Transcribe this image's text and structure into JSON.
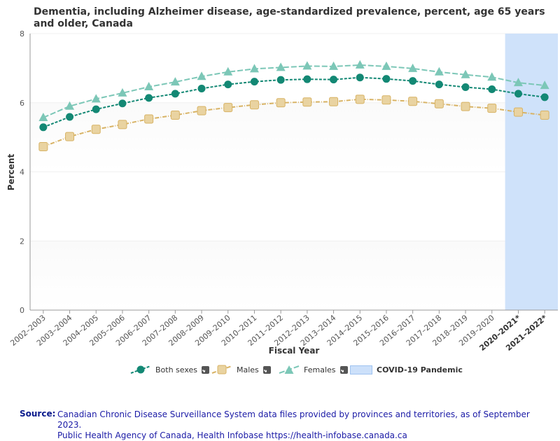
{
  "title": "Dementia, including Alzheimer disease, age-standardized prevalence, percent, age 65 years and older, Canada",
  "colors": {
    "both": "#138874",
    "males": "#d8b365",
    "females": "#7cc7b7",
    "covid": "#cce0fa"
  },
  "chart_data": {
    "type": "line",
    "title": "Dementia, including Alzheimer disease, age-standardized prevalence, percent, age 65 years and older, Canada",
    "xlabel": "Fiscal Year",
    "ylabel": "Percent",
    "ylim": [
      0,
      8
    ],
    "yticks": [
      0,
      2,
      4,
      6,
      8
    ],
    "categories": [
      "2002–2003",
      "2003–2004",
      "2004–2005",
      "2005–2006",
      "2006–2007",
      "2007–2008",
      "2008–2009",
      "2009–2010",
      "2010–2011",
      "2011–2012",
      "2012–2013",
      "2013–2014",
      "2014–2015",
      "2015–2016",
      "2016–2017",
      "2017–2018",
      "2018–2019",
      "2019–2020",
      "2020–2021*",
      "2021–2022*"
    ],
    "bold_categories": [
      "2020–2021*",
      "2021–2022*"
    ],
    "series": [
      {
        "name": "Both sexes",
        "values": [
          5.29,
          5.59,
          5.81,
          5.98,
          6.14,
          6.26,
          6.41,
          6.53,
          6.61,
          6.66,
          6.68,
          6.67,
          6.73,
          6.69,
          6.63,
          6.53,
          6.45,
          6.39,
          6.26,
          6.16
        ]
      },
      {
        "name": "Males",
        "values": [
          4.73,
          5.02,
          5.23,
          5.37,
          5.53,
          5.64,
          5.77,
          5.86,
          5.94,
          6.0,
          6.02,
          6.03,
          6.1,
          6.08,
          6.04,
          5.97,
          5.89,
          5.84,
          5.73,
          5.64
        ]
      },
      {
        "name": "Females",
        "values": [
          5.57,
          5.9,
          6.11,
          6.28,
          6.46,
          6.6,
          6.76,
          6.89,
          6.98,
          7.02,
          7.06,
          7.05,
          7.09,
          7.05,
          6.99,
          6.89,
          6.81,
          6.74,
          6.58,
          6.5
        ]
      }
    ],
    "shaded_region": {
      "label": "COVID-19 Pandemic",
      "from": "2020–2021*",
      "to": "2021–2022*"
    },
    "grid": true,
    "legend": "bottom-center"
  },
  "legend": {
    "both": "Both sexes",
    "males": "Males",
    "females": "Females",
    "covid": "COVID-19 Pandemic"
  },
  "source": {
    "label": "Source:",
    "line1": "Canadian Chronic Disease Surveillance System data files provided by provinces and territories, as of September 2023.",
    "line2": "Public Health Agency of Canada, Health Infobase https://health-infobase.canada.ca"
  }
}
